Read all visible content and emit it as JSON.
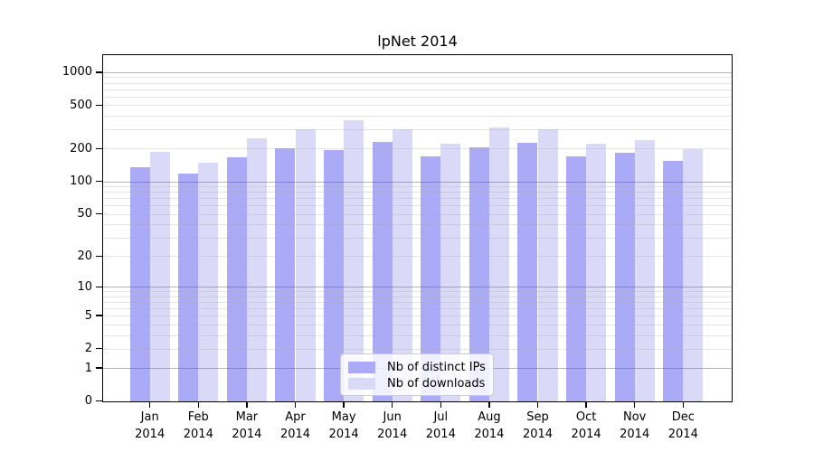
{
  "chart_data": {
    "type": "bar",
    "title": "lpNet 2014",
    "xlabel": "",
    "ylabel": "",
    "y_axis": {
      "scale": "log1p",
      "ticks": [
        0,
        1,
        2,
        5,
        10,
        20,
        50,
        100,
        200,
        500,
        1000
      ],
      "range": [
        0,
        1460
      ],
      "major_gridlines": [
        1,
        10,
        100,
        1000
      ],
      "minor_gridline_decades": [
        1,
        10,
        100
      ]
    },
    "categories": [
      {
        "month": "Jan",
        "year": "2014"
      },
      {
        "month": "Feb",
        "year": "2014"
      },
      {
        "month": "Mar",
        "year": "2014"
      },
      {
        "month": "Apr",
        "year": "2014"
      },
      {
        "month": "May",
        "year": "2014"
      },
      {
        "month": "Jun",
        "year": "2014"
      },
      {
        "month": "Jul",
        "year": "2014"
      },
      {
        "month": "Aug",
        "year": "2014"
      },
      {
        "month": "Sep",
        "year": "2014"
      },
      {
        "month": "Oct",
        "year": "2014"
      },
      {
        "month": "Nov",
        "year": "2014"
      },
      {
        "month": "Dec",
        "year": "2014"
      }
    ],
    "series": [
      {
        "name": "Nb of distinct IPs",
        "color": "#aaaaf7",
        "values": [
          134,
          119,
          167,
          200,
          195,
          231,
          170,
          207,
          224,
          171,
          184,
          155
        ]
      },
      {
        "name": "Nb of downloads",
        "color": "#dadaf8",
        "values": [
          187,
          148,
          250,
          298,
          363,
          298,
          221,
          313,
          300,
          220,
          237,
          197
        ]
      }
    ],
    "legend_position": "bottom-center",
    "grid": "on"
  }
}
